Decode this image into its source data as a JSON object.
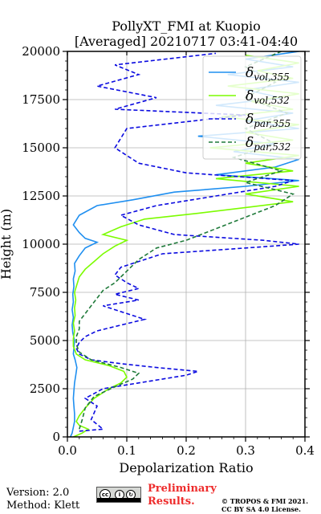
{
  "chart_data": {
    "type": "line",
    "title_line1": "PollyXT_FMI at Kuopio",
    "title_line2": "[Averaged] 20210717 03:41-04:40",
    "xlabel": "Depolarization Ratio",
    "ylabel": "Height (m)",
    "xlim": [
      0,
      0.4
    ],
    "ylim": [
      0,
      20000
    ],
    "x_ticks": [
      "0.0",
      "0.1",
      "0.2",
      "0.3",
      "0.4"
    ],
    "y_ticks": [
      "0",
      "2500",
      "5000",
      "7500",
      "10000",
      "12500",
      "15000",
      "17500",
      "20000"
    ],
    "grid": true,
    "legend_position": "top-right",
    "series": [
      {
        "name": "vol,355",
        "color": "#1f8ff0",
        "style": "solid",
        "points": [
          [
            0.005,
            0
          ],
          [
            0.008,
            200
          ],
          [
            0.01,
            500
          ],
          [
            0.012,
            800
          ],
          [
            0.012,
            1200
          ],
          [
            0.011,
            1600
          ],
          [
            0.01,
            2000
          ],
          [
            0.011,
            2400
          ],
          [
            0.012,
            2800
          ],
          [
            0.014,
            3200
          ],
          [
            0.016,
            3600
          ],
          [
            0.013,
            4000
          ],
          [
            0.01,
            4300
          ],
          [
            0.011,
            4600
          ],
          [
            0.012,
            5000
          ],
          [
            0.009,
            5400
          ],
          [
            0.008,
            5800
          ],
          [
            0.01,
            6200
          ],
          [
            0.008,
            6600
          ],
          [
            0.01,
            7000
          ],
          [
            0.009,
            7400
          ],
          [
            0.011,
            7800
          ],
          [
            0.01,
            8200
          ],
          [
            0.013,
            8600
          ],
          [
            0.012,
            9000
          ],
          [
            0.02,
            9400
          ],
          [
            0.03,
            9800
          ],
          [
            0.05,
            10100
          ],
          [
            0.03,
            10300
          ],
          [
            0.02,
            10600
          ],
          [
            0.01,
            11000
          ],
          [
            0.02,
            11500
          ],
          [
            0.05,
            12000
          ],
          [
            0.11,
            12300
          ],
          [
            0.18,
            12700
          ],
          [
            0.3,
            13000
          ],
          [
            0.39,
            13300
          ],
          [
            0.25,
            13600
          ],
          [
            0.35,
            14000
          ],
          [
            0.39,
            14400
          ],
          [
            0.28,
            14800
          ],
          [
            0.35,
            15200
          ],
          [
            0.22,
            15600
          ],
          [
            0.39,
            16000
          ],
          [
            0.3,
            16400
          ],
          [
            0.38,
            16800
          ],
          [
            0.25,
            17200
          ],
          [
            0.36,
            17600
          ],
          [
            0.3,
            18000
          ],
          [
            0.39,
            18400
          ],
          [
            0.27,
            18800
          ],
          [
            0.38,
            19200
          ],
          [
            0.3,
            19600
          ],
          [
            0.39,
            20000
          ]
        ]
      },
      {
        "name": "vol,532",
        "color": "#7cfc00",
        "style": "solid",
        "points": [
          [
            0.01,
            0
          ],
          [
            0.025,
            200
          ],
          [
            0.035,
            400
          ],
          [
            0.02,
            600
          ],
          [
            0.015,
            800
          ],
          [
            0.02,
            1100
          ],
          [
            0.03,
            1500
          ],
          [
            0.045,
            2000
          ],
          [
            0.07,
            2500
          ],
          [
            0.09,
            2800
          ],
          [
            0.1,
            3100
          ],
          [
            0.095,
            3400
          ],
          [
            0.07,
            3700
          ],
          [
            0.03,
            4000
          ],
          [
            0.015,
            4300
          ],
          [
            0.01,
            4700
          ],
          [
            0.01,
            5100
          ],
          [
            0.012,
            5500
          ],
          [
            0.01,
            5900
          ],
          [
            0.013,
            6300
          ],
          [
            0.012,
            6700
          ],
          [
            0.014,
            7100
          ],
          [
            0.012,
            7500
          ],
          [
            0.016,
            7900
          ],
          [
            0.02,
            8300
          ],
          [
            0.03,
            8700
          ],
          [
            0.045,
            9100
          ],
          [
            0.06,
            9500
          ],
          [
            0.08,
            9900
          ],
          [
            0.1,
            10200
          ],
          [
            0.06,
            10500
          ],
          [
            0.09,
            10900
          ],
          [
            0.13,
            11300
          ],
          [
            0.22,
            11600
          ],
          [
            0.3,
            11900
          ],
          [
            0.38,
            12200
          ],
          [
            0.3,
            12600
          ],
          [
            0.39,
            13000
          ],
          [
            0.25,
            13400
          ],
          [
            0.38,
            13800
          ],
          [
            0.3,
            14200
          ],
          [
            0.39,
            14600
          ],
          [
            0.24,
            15000
          ],
          [
            0.38,
            15400
          ],
          [
            0.3,
            15800
          ],
          [
            0.39,
            16200
          ],
          [
            0.26,
            16600
          ],
          [
            0.38,
            17000
          ],
          [
            0.31,
            17400
          ],
          [
            0.39,
            17800
          ],
          [
            0.27,
            18200
          ],
          [
            0.38,
            18600
          ],
          [
            0.32,
            19000
          ],
          [
            0.39,
            19400
          ],
          [
            0.3,
            19800
          ]
        ]
      },
      {
        "name": "par,355",
        "color": "#0a0ae0",
        "style": "dashed",
        "points": [
          [
            0.02,
            300
          ],
          [
            0.06,
            400
          ],
          [
            0.04,
            900
          ],
          [
            0.05,
            1600
          ],
          [
            0.03,
            2000
          ],
          [
            0.06,
            2500
          ],
          [
            0.1,
            2700
          ],
          [
            0.14,
            2900
          ],
          [
            0.2,
            3200
          ],
          [
            0.22,
            3400
          ],
          [
            0.15,
            3600
          ],
          [
            0.09,
            3800
          ],
          [
            0.04,
            4000
          ],
          [
            0.02,
            4300
          ],
          [
            0.015,
            4600
          ],
          [
            0.02,
            4900
          ],
          [
            0.03,
            5200
          ],
          [
            0.05,
            5500
          ],
          [
            0.09,
            5800
          ],
          [
            0.13,
            6100
          ],
          [
            0.1,
            6400
          ],
          [
            0.06,
            6800
          ],
          [
            0.12,
            7100
          ],
          [
            0.08,
            7400
          ],
          [
            0.12,
            7700
          ],
          [
            0.1,
            8000
          ],
          [
            0.08,
            8400
          ],
          [
            0.09,
            8800
          ],
          [
            0.13,
            9200
          ],
          [
            0.16,
            9500
          ],
          [
            0.3,
            9800
          ],
          [
            0.39,
            10000
          ],
          [
            0.33,
            10200
          ],
          [
            0.18,
            10500
          ],
          [
            0.12,
            11000
          ],
          [
            0.09,
            11500
          ],
          [
            0.15,
            12000
          ],
          [
            0.25,
            12500
          ],
          [
            0.35,
            13000
          ],
          [
            0.38,
            13300
          ],
          [
            0.2,
            13700
          ],
          [
            0.12,
            14200
          ],
          [
            0.08,
            15000
          ],
          [
            0.1,
            16000
          ],
          [
            0.3,
            16700
          ],
          [
            0.08,
            17000
          ],
          [
            0.15,
            17600
          ],
          [
            0.05,
            18200
          ],
          [
            0.12,
            18800
          ],
          [
            0.08,
            19300
          ],
          [
            0.25,
            19900
          ]
        ]
      },
      {
        "name": "par,532",
        "color": "#1f7a3a",
        "style": "dashed",
        "points": [
          [
            0.02,
            400
          ],
          [
            0.025,
            900
          ],
          [
            0.03,
            1500
          ],
          [
            0.045,
            2100
          ],
          [
            0.08,
            2600
          ],
          [
            0.11,
            3000
          ],
          [
            0.12,
            3300
          ],
          [
            0.09,
            3600
          ],
          [
            0.04,
            4000
          ],
          [
            0.02,
            4400
          ],
          [
            0.015,
            4800
          ],
          [
            0.015,
            5200
          ],
          [
            0.02,
            5600
          ],
          [
            0.02,
            6000
          ],
          [
            0.03,
            6400
          ],
          [
            0.04,
            6800
          ],
          [
            0.05,
            7200
          ],
          [
            0.06,
            7600
          ],
          [
            0.08,
            8000
          ],
          [
            0.1,
            8600
          ],
          [
            0.12,
            9200
          ],
          [
            0.15,
            9800
          ],
          [
            0.2,
            10200
          ],
          [
            0.25,
            10800
          ],
          [
            0.3,
            11400
          ],
          [
            0.35,
            12000
          ],
          [
            0.38,
            12600
          ],
          [
            0.3,
            13200
          ],
          [
            0.36,
            13800
          ],
          [
            0.28,
            14500
          ],
          [
            0.35,
            15200
          ],
          [
            0.3,
            16000
          ],
          [
            0.37,
            16800
          ],
          [
            0.3,
            17600
          ],
          [
            0.35,
            18400
          ],
          [
            0.3,
            19200
          ],
          [
            0.36,
            20000
          ]
        ]
      }
    ],
    "legend": [
      {
        "label": "δvol,355",
        "main": "δ",
        "sub": "vol,355",
        "color": "#1f8ff0",
        "style": "solid"
      },
      {
        "label": "δvol,532",
        "main": "δ",
        "sub": "vol,532",
        "color": "#7cfc00",
        "style": "solid"
      },
      {
        "label": "δpar,355",
        "main": "δ",
        "sub": "par,355",
        "color": "#0a0ae0",
        "style": "dashed"
      },
      {
        "label": "δpar,532",
        "main": "δ",
        "sub": "par,532",
        "color": "#1f7a3a",
        "style": "dashed"
      }
    ]
  },
  "footer": {
    "version": "Version: 2.0",
    "method": "Method: Klett",
    "cc_badge": "cc by sa",
    "preliminary_line1": "Preliminary",
    "preliminary_line2": "Results.",
    "copyright_line1": "© TROPOS & FMI 2021.",
    "copyright_line2": "CC BY SA 4.0 License."
  }
}
